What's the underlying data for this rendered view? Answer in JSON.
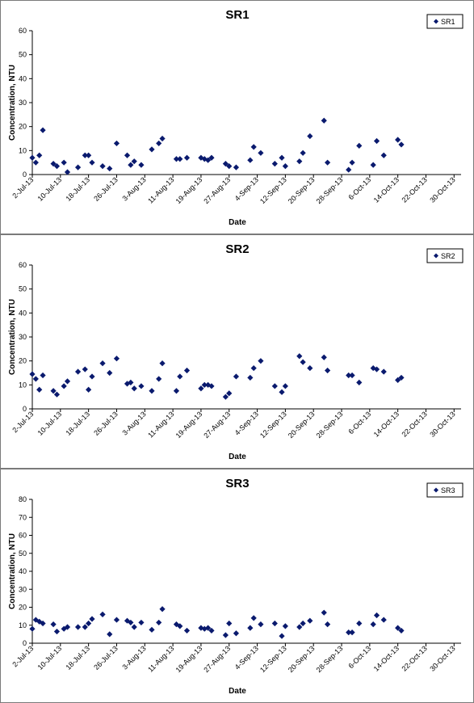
{
  "chart_data": [
    {
      "type": "scatter",
      "title": "SR1",
      "xlabel": "Date",
      "ylabel": "Concentration, NTU",
      "ylim": [
        0,
        60
      ],
      "yticks": [
        "0",
        "10",
        "20",
        "30",
        "40",
        "50",
        "60"
      ],
      "xticks": [
        "2-Jul-13",
        "10-Jul-13",
        "18-Jul-13",
        "26-Jul-13",
        "3-Aug-13",
        "11-Aug-13",
        "19-Aug-13",
        "27-Aug-13",
        "4-Sep-13",
        "12-Sep-13",
        "20-Sep-13",
        "28-Sep-13",
        "6-Oct-13",
        "14-Oct-13",
        "22-Oct-13",
        "30-Oct-13"
      ],
      "legend": "top-right",
      "grid": false,
      "marker_color": "#0a1a6e",
      "series": [
        {
          "name": "SR1",
          "points": [
            {
              "x": "2013-07-02",
              "y": 7
            },
            {
              "x": "2013-07-03",
              "y": 5
            },
            {
              "x": "2013-07-04",
              "y": 8
            },
            {
              "x": "2013-07-05",
              "y": 18.5
            },
            {
              "x": "2013-07-08",
              "y": 4.5
            },
            {
              "x": "2013-07-09",
              "y": 3.5
            },
            {
              "x": "2013-07-11",
              "y": 5
            },
            {
              "x": "2013-07-12",
              "y": 1
            },
            {
              "x": "2013-07-15",
              "y": 3
            },
            {
              "x": "2013-07-17",
              "y": 8
            },
            {
              "x": "2013-07-18",
              "y": 8
            },
            {
              "x": "2013-07-19",
              "y": 5
            },
            {
              "x": "2013-07-22",
              "y": 3.5
            },
            {
              "x": "2013-07-24",
              "y": 2.5
            },
            {
              "x": "2013-07-26",
              "y": 13
            },
            {
              "x": "2013-07-29",
              "y": 8
            },
            {
              "x": "2013-07-30",
              "y": 4
            },
            {
              "x": "2013-07-31",
              "y": 5.5
            },
            {
              "x": "2013-08-02",
              "y": 4
            },
            {
              "x": "2013-08-05",
              "y": 10.5
            },
            {
              "x": "2013-08-07",
              "y": 13
            },
            {
              "x": "2013-08-08",
              "y": 15
            },
            {
              "x": "2013-08-12",
              "y": 6.5
            },
            {
              "x": "2013-08-13",
              "y": 6.5
            },
            {
              "x": "2013-08-15",
              "y": 7
            },
            {
              "x": "2013-08-19",
              "y": 7
            },
            {
              "x": "2013-08-20",
              "y": 6.5
            },
            {
              "x": "2013-08-21",
              "y": 6
            },
            {
              "x": "2013-08-22",
              "y": 7
            },
            {
              "x": "2013-08-26",
              "y": 4.5
            },
            {
              "x": "2013-08-27",
              "y": 3.5
            },
            {
              "x": "2013-08-29",
              "y": 3
            },
            {
              "x": "2013-09-02",
              "y": 6
            },
            {
              "x": "2013-09-03",
              "y": 11.5
            },
            {
              "x": "2013-09-05",
              "y": 9
            },
            {
              "x": "2013-09-09",
              "y": 4.5
            },
            {
              "x": "2013-09-11",
              "y": 7
            },
            {
              "x": "2013-09-12",
              "y": 3.5
            },
            {
              "x": "2013-09-16",
              "y": 5.5
            },
            {
              "x": "2013-09-17",
              "y": 9
            },
            {
              "x": "2013-09-19",
              "y": 16
            },
            {
              "x": "2013-09-23",
              "y": 22.5
            },
            {
              "x": "2013-09-24",
              "y": 5
            },
            {
              "x": "2013-09-30",
              "y": 2
            },
            {
              "x": "2013-10-01",
              "y": 5
            },
            {
              "x": "2013-10-03",
              "y": 12
            },
            {
              "x": "2013-10-07",
              "y": 4
            },
            {
              "x": "2013-10-08",
              "y": 14
            },
            {
              "x": "2013-10-10",
              "y": 8
            },
            {
              "x": "2013-10-14",
              "y": 14.5
            },
            {
              "x": "2013-10-15",
              "y": 12.5
            }
          ]
        }
      ]
    },
    {
      "type": "scatter",
      "title": "SR2",
      "xlabel": "Date",
      "ylabel": "Concentration, NTU",
      "ylim": [
        0,
        60
      ],
      "yticks": [
        "0",
        "10",
        "20",
        "30",
        "40",
        "50",
        "60"
      ],
      "xticks": [
        "2-Jul-13",
        "10-Jul-13",
        "18-Jul-13",
        "26-Jul-13",
        "3-Aug-13",
        "11-Aug-13",
        "19-Aug-13",
        "27-Aug-13",
        "4-Sep-13",
        "12-Sep-13",
        "20-Sep-13",
        "28-Sep-13",
        "6-Oct-13",
        "14-Oct-13",
        "22-Oct-13",
        "30-Oct-13"
      ],
      "legend": "top-right",
      "grid": false,
      "marker_color": "#0a1a6e",
      "series": [
        {
          "name": "SR2",
          "points": [
            {
              "x": "2013-07-02",
              "y": 14.5
            },
            {
              "x": "2013-07-03",
              "y": 12.5
            },
            {
              "x": "2013-07-04",
              "y": 8
            },
            {
              "x": "2013-07-05",
              "y": 14
            },
            {
              "x": "2013-07-08",
              "y": 7.5
            },
            {
              "x": "2013-07-09",
              "y": 6
            },
            {
              "x": "2013-07-11",
              "y": 9.5
            },
            {
              "x": "2013-07-12",
              "y": 11.5
            },
            {
              "x": "2013-07-15",
              "y": 15.5
            },
            {
              "x": "2013-07-17",
              "y": 16.5
            },
            {
              "x": "2013-07-18",
              "y": 8
            },
            {
              "x": "2013-07-19",
              "y": 13.5
            },
            {
              "x": "2013-07-22",
              "y": 19
            },
            {
              "x": "2013-07-24",
              "y": 15
            },
            {
              "x": "2013-07-26",
              "y": 21
            },
            {
              "x": "2013-07-29",
              "y": 10.5
            },
            {
              "x": "2013-07-30",
              "y": 11
            },
            {
              "x": "2013-07-31",
              "y": 8.5
            },
            {
              "x": "2013-08-02",
              "y": 9.5
            },
            {
              "x": "2013-08-05",
              "y": 7.5
            },
            {
              "x": "2013-08-07",
              "y": 12.5
            },
            {
              "x": "2013-08-08",
              "y": 19
            },
            {
              "x": "2013-08-12",
              "y": 7.5
            },
            {
              "x": "2013-08-13",
              "y": 13.5
            },
            {
              "x": "2013-08-15",
              "y": 16
            },
            {
              "x": "2013-08-19",
              "y": 8.5
            },
            {
              "x": "2013-08-20",
              "y": 10
            },
            {
              "x": "2013-08-21",
              "y": 10
            },
            {
              "x": "2013-08-22",
              "y": 9.5
            },
            {
              "x": "2013-08-26",
              "y": 5
            },
            {
              "x": "2013-08-27",
              "y": 6.5
            },
            {
              "x": "2013-08-29",
              "y": 13.5
            },
            {
              "x": "2013-09-02",
              "y": 13
            },
            {
              "x": "2013-09-03",
              "y": 17
            },
            {
              "x": "2013-09-05",
              "y": 20
            },
            {
              "x": "2013-09-09",
              "y": 9.5
            },
            {
              "x": "2013-09-11",
              "y": 7
            },
            {
              "x": "2013-09-12",
              "y": 9.5
            },
            {
              "x": "2013-09-16",
              "y": 22
            },
            {
              "x": "2013-09-17",
              "y": 19.5
            },
            {
              "x": "2013-09-19",
              "y": 17
            },
            {
              "x": "2013-09-23",
              "y": 21.5
            },
            {
              "x": "2013-09-24",
              "y": 16
            },
            {
              "x": "2013-09-30",
              "y": 14
            },
            {
              "x": "2013-10-01",
              "y": 14
            },
            {
              "x": "2013-10-03",
              "y": 11
            },
            {
              "x": "2013-10-07",
              "y": 17
            },
            {
              "x": "2013-10-08",
              "y": 16.5
            },
            {
              "x": "2013-10-10",
              "y": 15.5
            },
            {
              "x": "2013-10-14",
              "y": 12
            },
            {
              "x": "2013-10-15",
              "y": 13
            }
          ]
        }
      ]
    },
    {
      "type": "scatter",
      "title": "SR3",
      "xlabel": "Date",
      "ylabel": "Concentration, NTU",
      "ylim": [
        0,
        80
      ],
      "yticks": [
        "0",
        "10",
        "20",
        "30",
        "40",
        "50",
        "60",
        "70",
        "80"
      ],
      "xticks": [
        "2-Jul-13",
        "10-Jul-13",
        "18-Jul-13",
        "26-Jul-13",
        "3-Aug-13",
        "11-Aug-13",
        "19-Aug-13",
        "27-Aug-13",
        "4-Sep-13",
        "12-Sep-13",
        "20-Sep-13",
        "28-Sep-13",
        "6-Oct-13",
        "14-Oct-13",
        "22-Oct-13",
        "30-Oct-13"
      ],
      "legend": "top-right",
      "grid": false,
      "marker_color": "#0a1a6e",
      "series": [
        {
          "name": "SR3",
          "points": [
            {
              "x": "2013-07-02",
              "y": 8
            },
            {
              "x": "2013-07-03",
              "y": 13
            },
            {
              "x": "2013-07-04",
              "y": 12
            },
            {
              "x": "2013-07-05",
              "y": 11
            },
            {
              "x": "2013-07-08",
              "y": 10.5
            },
            {
              "x": "2013-07-09",
              "y": 6.5
            },
            {
              "x": "2013-07-11",
              "y": 8
            },
            {
              "x": "2013-07-12",
              "y": 9
            },
            {
              "x": "2013-07-15",
              "y": 9
            },
            {
              "x": "2013-07-17",
              "y": 9
            },
            {
              "x": "2013-07-18",
              "y": 11
            },
            {
              "x": "2013-07-19",
              "y": 13.5
            },
            {
              "x": "2013-07-22",
              "y": 16
            },
            {
              "x": "2013-07-24",
              "y": 5
            },
            {
              "x": "2013-07-26",
              "y": 13
            },
            {
              "x": "2013-07-29",
              "y": 12.5
            },
            {
              "x": "2013-07-30",
              "y": 11.5
            },
            {
              "x": "2013-07-31",
              "y": 9
            },
            {
              "x": "2013-08-02",
              "y": 11.5
            },
            {
              "x": "2013-08-05",
              "y": 7.5
            },
            {
              "x": "2013-08-07",
              "y": 11.5
            },
            {
              "x": "2013-08-08",
              "y": 19
            },
            {
              "x": "2013-08-12",
              "y": 10.5
            },
            {
              "x": "2013-08-13",
              "y": 9.5
            },
            {
              "x": "2013-08-15",
              "y": 7
            },
            {
              "x": "2013-08-19",
              "y": 8.5
            },
            {
              "x": "2013-08-20",
              "y": 8
            },
            {
              "x": "2013-08-21",
              "y": 8.5
            },
            {
              "x": "2013-08-22",
              "y": 7
            },
            {
              "x": "2013-08-26",
              "y": 4.5
            },
            {
              "x": "2013-08-27",
              "y": 11
            },
            {
              "x": "2013-08-29",
              "y": 5.5
            },
            {
              "x": "2013-09-02",
              "y": 8.5
            },
            {
              "x": "2013-09-03",
              "y": 14
            },
            {
              "x": "2013-09-05",
              "y": 10.5
            },
            {
              "x": "2013-09-09",
              "y": 11
            },
            {
              "x": "2013-09-11",
              "y": 4
            },
            {
              "x": "2013-09-12",
              "y": 9.5
            },
            {
              "x": "2013-09-16",
              "y": 9
            },
            {
              "x": "2013-09-17",
              "y": 11
            },
            {
              "x": "2013-09-19",
              "y": 12.5
            },
            {
              "x": "2013-09-23",
              "y": 17
            },
            {
              "x": "2013-09-24",
              "y": 10.5
            },
            {
              "x": "2013-09-30",
              "y": 6
            },
            {
              "x": "2013-10-01",
              "y": 6
            },
            {
              "x": "2013-10-03",
              "y": 11
            },
            {
              "x": "2013-10-07",
              "y": 10.5
            },
            {
              "x": "2013-10-08",
              "y": 15.5
            },
            {
              "x": "2013-10-10",
              "y": 13
            },
            {
              "x": "2013-10-14",
              "y": 8.5
            },
            {
              "x": "2013-10-15",
              "y": 7
            }
          ]
        }
      ]
    }
  ]
}
